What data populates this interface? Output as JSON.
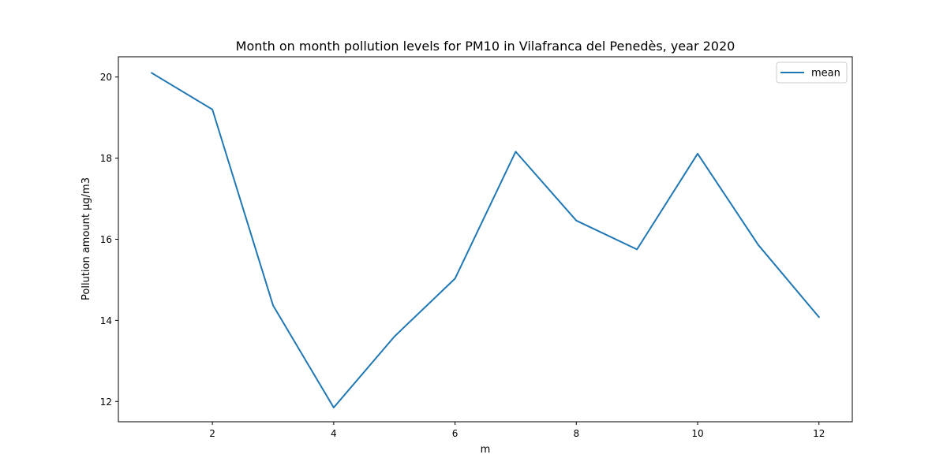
{
  "chart_data": {
    "type": "line",
    "title": "Month on month pollution levels for PM10 in Vilafranca del Penedès, year 2020",
    "xlabel": "m",
    "ylabel": "Pollution amount µg/m3",
    "x": [
      1,
      2,
      3,
      4,
      5,
      6,
      7,
      8,
      9,
      10,
      11,
      12
    ],
    "series": [
      {
        "name": "mean",
        "color": "#1f77b4",
        "values": [
          20.1,
          19.2,
          14.37,
          11.85,
          13.6,
          15.03,
          18.16,
          16.46,
          15.75,
          18.11,
          15.86,
          14.08
        ]
      }
    ],
    "xlim": [
      0.45,
      12.55
    ],
    "ylim": [
      11.5,
      20.5
    ],
    "xticks": [
      2,
      4,
      6,
      8,
      10,
      12
    ],
    "xtick_labels": [
      "2",
      "4",
      "6",
      "8",
      "10",
      "12"
    ],
    "yticks": [
      12,
      14,
      16,
      18,
      20
    ],
    "ytick_labels": [
      "12",
      "14",
      "16",
      "18",
      "20"
    ],
    "grid": false,
    "legend_position": "top-right"
  }
}
